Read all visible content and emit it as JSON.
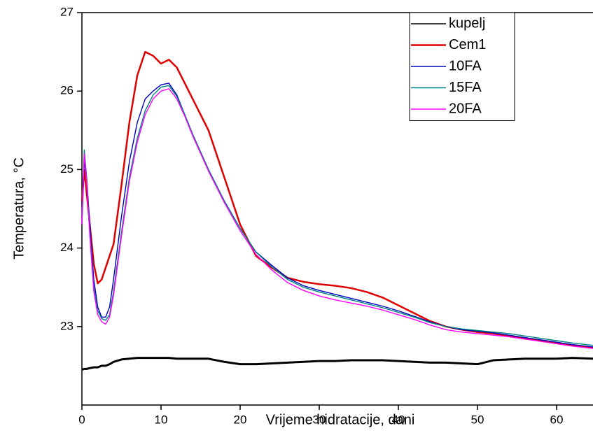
{
  "chart_data": {
    "type": "line",
    "x_label": "Vrijeme hidratacije, dani",
    "y_label": "Temperatura, °C",
    "x": [
      0,
      0.3,
      0.6,
      1,
      1.5,
      2,
      2.5,
      3,
      3.5,
      4,
      5,
      6,
      7,
      8,
      9,
      10,
      11,
      12,
      13,
      14,
      16,
      18,
      20,
      22,
      24,
      26,
      28,
      30,
      32,
      34,
      36,
      38,
      40,
      42,
      44,
      46,
      48,
      50,
      52,
      54,
      56,
      58,
      60,
      62,
      64.6
    ],
    "series": [
      {
        "name": "kupelj",
        "color": "#000000",
        "values": [
          22.45,
          22.46,
          22.46,
          22.47,
          22.48,
          22.48,
          22.5,
          22.5,
          22.52,
          22.55,
          22.58,
          22.59,
          22.6,
          22.6,
          22.6,
          22.6,
          22.6,
          22.59,
          22.59,
          22.59,
          22.59,
          22.55,
          22.52,
          22.52,
          22.53,
          22.54,
          22.55,
          22.56,
          22.56,
          22.57,
          22.57,
          22.57,
          22.56,
          22.55,
          22.54,
          22.54,
          22.53,
          22.52,
          22.57,
          22.58,
          22.59,
          22.59,
          22.59,
          22.6,
          22.59
        ]
      },
      {
        "name": "Cem1",
        "color": "#e00000",
        "values": [
          24.6,
          25.0,
          24.7,
          24.3,
          23.8,
          23.55,
          23.6,
          23.75,
          23.9,
          24.05,
          24.8,
          25.6,
          26.2,
          26.5,
          26.45,
          26.35,
          26.4,
          26.3,
          26.1,
          25.9,
          25.5,
          24.9,
          24.3,
          23.9,
          23.75,
          23.62,
          23.57,
          23.54,
          23.52,
          23.49,
          23.44,
          23.37,
          23.27,
          23.17,
          23.07,
          23.0,
          22.96,
          22.93,
          22.91,
          22.88,
          22.85,
          22.82,
          22.79,
          22.76,
          22.73
        ]
      },
      {
        "name": "10FA",
        "color": "#0000c0",
        "values": [
          24.3,
          25.1,
          24.9,
          24.3,
          23.6,
          23.25,
          23.12,
          23.12,
          23.25,
          23.6,
          24.4,
          25.1,
          25.6,
          25.9,
          26.0,
          26.08,
          26.1,
          25.95,
          25.7,
          25.45,
          25.0,
          24.6,
          24.25,
          23.95,
          23.78,
          23.62,
          23.52,
          23.46,
          23.41,
          23.36,
          23.31,
          23.26,
          23.2,
          23.13,
          23.06,
          23.0,
          22.96,
          22.94,
          22.92,
          22.89,
          22.86,
          22.83,
          22.8,
          22.77,
          22.74
        ]
      },
      {
        "name": "15FA",
        "color": "#008080",
        "values": [
          24.4,
          25.25,
          24.9,
          24.2,
          23.5,
          23.2,
          23.1,
          23.08,
          23.15,
          23.45,
          24.2,
          24.9,
          25.4,
          25.75,
          25.95,
          26.05,
          26.07,
          25.93,
          25.7,
          25.45,
          25.0,
          24.6,
          24.25,
          23.95,
          23.76,
          23.6,
          23.5,
          23.44,
          23.39,
          23.34,
          23.29,
          23.24,
          23.18,
          23.12,
          23.05,
          23.0,
          22.97,
          22.95,
          22.93,
          22.91,
          22.88,
          22.85,
          22.82,
          22.79,
          22.76
        ]
      },
      {
        "name": "20FA",
        "color": "#ff00ff",
        "values": [
          24.3,
          25.2,
          24.85,
          24.15,
          23.45,
          23.15,
          23.06,
          23.03,
          23.12,
          23.4,
          24.15,
          24.85,
          25.35,
          25.7,
          25.9,
          26.0,
          26.03,
          25.9,
          25.68,
          25.43,
          24.98,
          24.58,
          24.22,
          23.92,
          23.72,
          23.56,
          23.46,
          23.39,
          23.34,
          23.3,
          23.26,
          23.21,
          23.15,
          23.09,
          23.02,
          22.96,
          22.93,
          22.91,
          22.89,
          22.87,
          22.84,
          22.81,
          22.78,
          22.75,
          22.72
        ]
      }
    ],
    "xlim": [
      0,
      64.6
    ],
    "xticks": [
      0,
      10,
      20,
      30,
      40,
      50,
      60
    ],
    "ylim": [
      22,
      27
    ],
    "yticks": [
      23,
      24,
      25,
      26,
      27
    ],
    "legend": "top-right"
  }
}
